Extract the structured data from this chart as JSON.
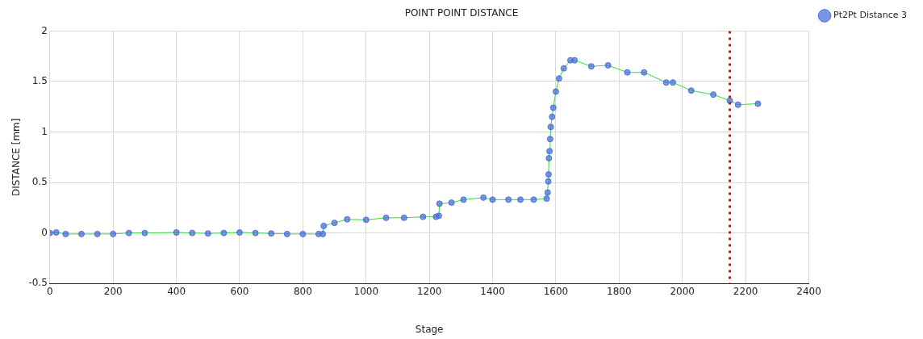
{
  "chart_data": {
    "type": "line",
    "title": "POINT POINT DISTANCE",
    "xlabel": "Stage",
    "ylabel": "DISTANCE [mm]",
    "x": [
      0,
      20,
      50,
      100,
      150,
      200,
      250,
      300,
      400,
      450,
      500,
      550,
      600,
      650,
      700,
      750,
      800,
      850,
      863,
      866,
      900,
      940,
      1000,
      1063,
      1120,
      1180,
      1221,
      1230,
      1232,
      1270,
      1308,
      1371,
      1400,
      1450,
      1488,
      1530,
      1571,
      1574,
      1576,
      1577,
      1578,
      1580,
      1582,
      1584,
      1588,
      1592,
      1600,
      1610,
      1625,
      1646,
      1659,
      1712,
      1765,
      1826,
      1879,
      1949,
      1970,
      2028,
      2098,
      2150,
      2176,
      2239
    ],
    "series": [
      {
        "name": "Pt2Pt Distance 3",
        "color": "#4a6fdc",
        "values": [
          0,
          0.005,
          -0.01,
          -0.01,
          -0.01,
          -0.01,
          0,
          0,
          0.005,
          0,
          -0.005,
          0,
          0.005,
          0,
          -0.005,
          -0.01,
          -0.01,
          -0.01,
          -0.01,
          0.07,
          0.1,
          0.135,
          0.13,
          0.15,
          0.15,
          0.16,
          0.16,
          0.17,
          0.29,
          0.3,
          0.33,
          0.35,
          0.33,
          0.33,
          0.33,
          0.33,
          0.34,
          0.4,
          0.51,
          0.58,
          0.74,
          0.81,
          0.93,
          1.05,
          1.15,
          1.24,
          1.4,
          1.53,
          1.63,
          1.71,
          1.71,
          1.65,
          1.66,
          1.59,
          1.59,
          1.49,
          1.49,
          1.41,
          1.37,
          1.31,
          1.27,
          1.28
        ]
      }
    ],
    "xlim": [
      0,
      2400
    ],
    "xticks": [
      0,
      200,
      400,
      600,
      800,
      1000,
      1200,
      1400,
      1600,
      1800,
      2000,
      2200,
      2400
    ],
    "ylim": [
      -0.5,
      2
    ],
    "yticks": [
      -0.5,
      0,
      0.5,
      1,
      1.5,
      2
    ],
    "grid": true,
    "legend": "top right",
    "marker": "circle",
    "line_style": "solid",
    "ref_lines": [
      {
        "axis": "x",
        "value": 2150,
        "color": "#ff0000",
        "line_style": "dotted"
      }
    ]
  }
}
